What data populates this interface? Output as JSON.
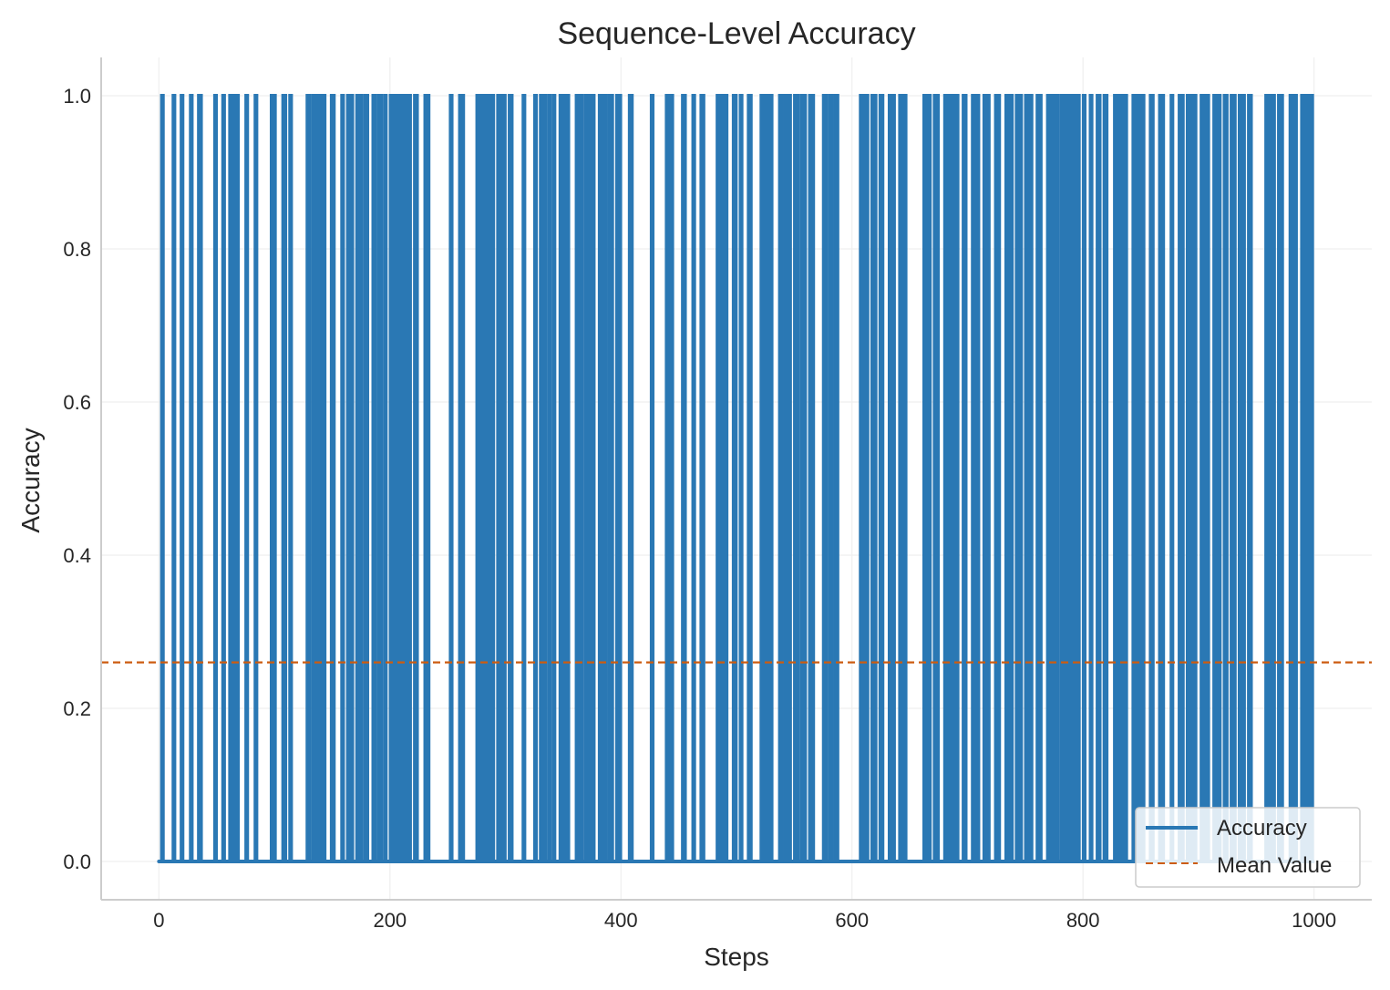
{
  "chart_data": {
    "type": "line",
    "title": "Sequence-Level Accuracy",
    "xlabel": "Steps",
    "ylabel": "Accuracy",
    "xlim": [
      -50,
      1050
    ],
    "ylim": [
      -0.05,
      1.05
    ],
    "x_ticks": [
      0,
      200,
      400,
      600,
      800,
      1000
    ],
    "x_tick_labels": [
      "0",
      "200",
      "400",
      "600",
      "800",
      "1000"
    ],
    "y_ticks": [
      0.0,
      0.2,
      0.4,
      0.6,
      0.8,
      1.0
    ],
    "y_tick_labels": [
      "0.0",
      "0.2",
      "0.4",
      "0.6",
      "0.8",
      "1.0"
    ],
    "grid": true,
    "legend_position": "lower-right",
    "series": [
      {
        "name": "Accuracy",
        "color": "#2a78b4",
        "style": "solid",
        "x_start": 0,
        "x_end": 999,
        "one_segments": [
          [
            2,
            4
          ],
          [
            12,
            14
          ],
          [
            19,
            21
          ],
          [
            27,
            29
          ],
          [
            34,
            37
          ],
          [
            48,
            50
          ],
          [
            55,
            57
          ],
          [
            61,
            63
          ],
          [
            65,
            69
          ],
          [
            75,
            77
          ],
          [
            83,
            85
          ],
          [
            97,
            101
          ],
          [
            107,
            110
          ],
          [
            113,
            115
          ],
          [
            128,
            131
          ],
          [
            133,
            144
          ],
          [
            149,
            152
          ],
          [
            158,
            160
          ],
          [
            163,
            168
          ],
          [
            171,
            176
          ],
          [
            178,
            181
          ],
          [
            185,
            188
          ],
          [
            190,
            193
          ],
          [
            195,
            197
          ],
          [
            200,
            218
          ],
          [
            221,
            224
          ],
          [
            230,
            234
          ],
          [
            252,
            254
          ],
          [
            260,
            264
          ],
          [
            275,
            290
          ],
          [
            293,
            300
          ],
          [
            303,
            306
          ],
          [
            315,
            317
          ],
          [
            325,
            327
          ],
          [
            330,
            335
          ],
          [
            337,
            339
          ],
          [
            341,
            343
          ],
          [
            347,
            355
          ],
          [
            361,
            367
          ],
          [
            369,
            377
          ],
          [
            381,
            383
          ],
          [
            385,
            387
          ],
          [
            389,
            393
          ],
          [
            396,
            400
          ],
          [
            407,
            410
          ],
          [
            426,
            428
          ],
          [
            439,
            445
          ],
          [
            453,
            456
          ],
          [
            462,
            464
          ],
          [
            469,
            472
          ],
          [
            483,
            486
          ],
          [
            488,
            492
          ],
          [
            497,
            500
          ],
          [
            503,
            505
          ],
          [
            510,
            513
          ],
          [
            521,
            531
          ],
          [
            537,
            540
          ],
          [
            542,
            547
          ],
          [
            550,
            554
          ],
          [
            556,
            560
          ],
          [
            563,
            567
          ],
          [
            575,
            578
          ],
          [
            580,
            583
          ],
          [
            585,
            588
          ],
          [
            607,
            614
          ],
          [
            617,
            621
          ],
          [
            624,
            627
          ],
          [
            632,
            637
          ],
          [
            641,
            647
          ],
          [
            662,
            668
          ],
          [
            671,
            675
          ],
          [
            680,
            692
          ],
          [
            696,
            699
          ],
          [
            704,
            710
          ],
          [
            714,
            719
          ],
          [
            724,
            728
          ],
          [
            733,
            739
          ],
          [
            742,
            747
          ],
          [
            750,
            756
          ],
          [
            760,
            764
          ],
          [
            769,
            779
          ],
          [
            781,
            789
          ],
          [
            791,
            797
          ],
          [
            800,
            802
          ],
          [
            806,
            808
          ],
          [
            812,
            815
          ],
          [
            818,
            821
          ],
          [
            827,
            832
          ],
          [
            834,
            838
          ],
          [
            843,
            853
          ],
          [
            858,
            861
          ],
          [
            866,
            870
          ],
          [
            876,
            878
          ],
          [
            883,
            887
          ],
          [
            890,
            898
          ],
          [
            902,
            909
          ],
          [
            913,
            919
          ],
          [
            922,
            925
          ],
          [
            928,
            932
          ],
          [
            935,
            940
          ],
          [
            943,
            946
          ],
          [
            958,
            966
          ],
          [
            969,
            973
          ],
          [
            979,
            985
          ],
          [
            989,
            993
          ],
          [
            995,
            999
          ]
        ]
      },
      {
        "name": "Mean Value",
        "color": "#cc5c10",
        "style": "dashed",
        "value": 0.26
      }
    ]
  }
}
